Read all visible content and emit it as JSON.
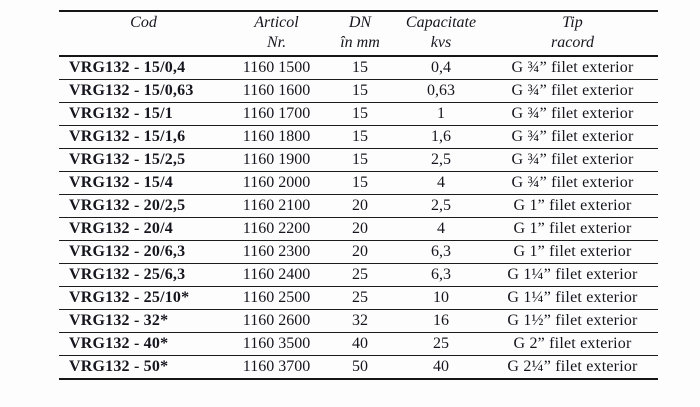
{
  "table": {
    "column_keys": [
      "cod",
      "articol-nr",
      "dn-mm",
      "capacitate-kvs",
      "tip-racord"
    ],
    "columns": [
      {
        "line1": "Cod",
        "line2": ""
      },
      {
        "line1": "Articol",
        "line2": "Nr."
      },
      {
        "line1": "DN",
        "line2": "în mm"
      },
      {
        "line1": "Capacitate",
        "line2": "kvs"
      },
      {
        "line1": "Tip",
        "line2": "racord"
      }
    ],
    "rows": [
      [
        "VRG132 - 15/0,4",
        "1160 1500",
        "15",
        "0,4",
        "G ¾” filet exterior"
      ],
      [
        "VRG132 - 15/0,63",
        "1160 1600",
        "15",
        "0,63",
        "G ¾” filet exterior"
      ],
      [
        "VRG132 - 15/1",
        "1160 1700",
        "15",
        "1",
        "G ¾” filet exterior"
      ],
      [
        "VRG132 - 15/1,6",
        "1160 1800",
        "15",
        "1,6",
        "G ¾” filet exterior"
      ],
      [
        "VRG132 - 15/2,5",
        "1160 1900",
        "15",
        "2,5",
        "G ¾” filet exterior"
      ],
      [
        "VRG132 - 15/4",
        "1160 2000",
        "15",
        "4",
        "G ¾” filet exterior"
      ],
      [
        "VRG132 - 20/2,5",
        "1160 2100",
        "20",
        "2,5",
        "G 1” filet exterior"
      ],
      [
        "VRG132 - 20/4",
        "1160 2200",
        "20",
        "4",
        "G 1” filet exterior"
      ],
      [
        "VRG132 - 20/6,3",
        "1160 2300",
        "20",
        "6,3",
        "G 1” filet exterior"
      ],
      [
        "VRG132 - 25/6,3",
        "1160 2400",
        "25",
        "6,3",
        "G 1¼” filet exterior"
      ],
      [
        "VRG132 - 25/10*",
        "1160 2500",
        "25",
        "10",
        "G 1¼” filet exterior"
      ],
      [
        "VRG132 - 32*",
        "1160 2600",
        "32",
        "16",
        "G 1½” filet exterior"
      ],
      [
        "VRG132 - 40*",
        "1160 3500",
        "40",
        "25",
        "G 2” filet exterior"
      ],
      [
        "VRG132 - 50*",
        "1160 3700",
        "50",
        "40",
        "G 2¼” filet exterior"
      ]
    ]
  },
  "colors": {
    "text": "#15151e",
    "rule": "#161616",
    "background": "#fdfdfd"
  }
}
